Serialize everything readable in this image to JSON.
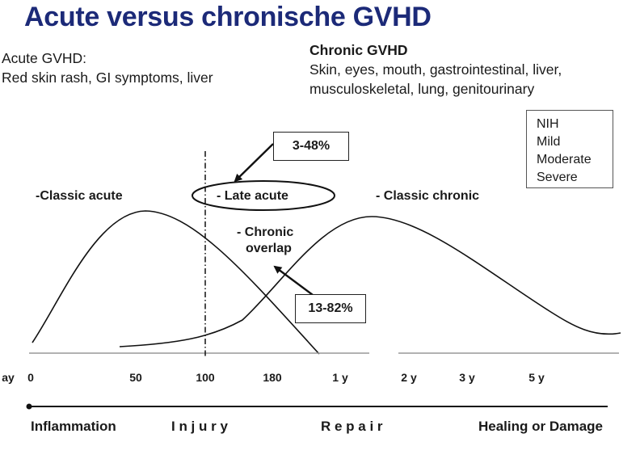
{
  "title": "Acute versus chronische GVHD",
  "acute_gvhd": {
    "heading": "Acute GVHD:",
    "symptoms": "Red skin rash, GI symptoms, liver"
  },
  "chronic_gvhd": {
    "heading": "Chronic GVHD",
    "organs_line1": "Skin, eyes, mouth, gastrointestinal, liver,",
    "organs_line2": "musculoskeletal, lung, genitourinary"
  },
  "nih_grading": [
    "NIH",
    "Mild",
    "Moderate",
    "Severe"
  ],
  "curve_labels": {
    "classic_acute": "-Classic acute",
    "late_acute": "- Late acute",
    "chronic_overlap_line1": "- Chronic",
    "chronic_overlap_line2": "overlap",
    "classic_chronic": "- Classic chronic"
  },
  "percent_callouts": {
    "late_acute": "3-48%",
    "chronic_overlap": "13-82%"
  },
  "timeline": {
    "axis_prefix": "ay",
    "ticks": [
      "0",
      "50",
      "100",
      "180",
      "1 y",
      "2 y",
      "3 y",
      "5 y"
    ],
    "phases": [
      "Inflammation",
      "I n j u r y",
      "R e p a i r",
      "Healing or Damage"
    ]
  }
}
